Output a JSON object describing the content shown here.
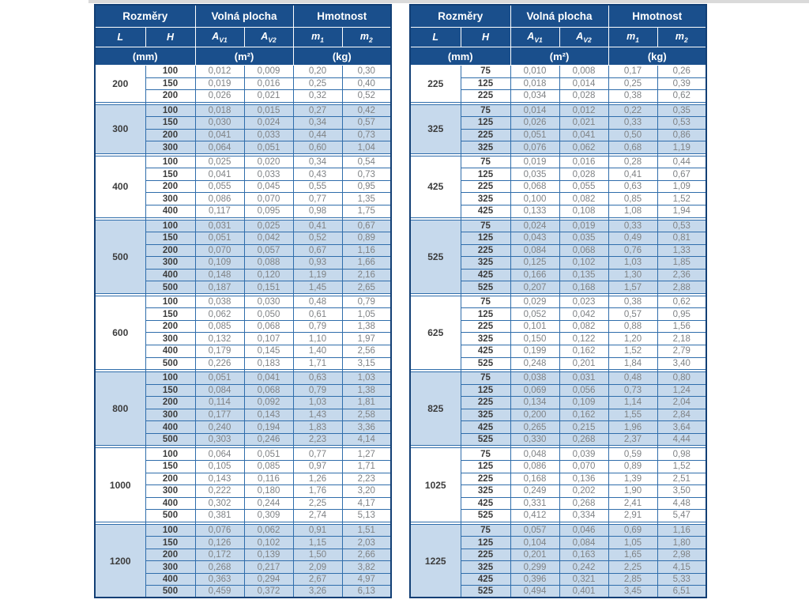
{
  "colors": {
    "header_bg": "#1a4f8c",
    "band_blue": "#c6d9ec",
    "grid_blue": "#2f6dab",
    "outer_border": "#123f75",
    "num_text": "#7f8285",
    "bold_text": "#3c3c3c"
  },
  "header": {
    "col_groups": [
      "Rozměry",
      "Volná plocha",
      "Hmotnost"
    ],
    "sub_cols": [
      {
        "base": "L",
        "sub": ""
      },
      {
        "base": "H",
        "sub": ""
      },
      {
        "base": "A",
        "sub": "V1"
      },
      {
        "base": "A",
        "sub": "V2"
      },
      {
        "base": "m",
        "sub": "1"
      },
      {
        "base": "m",
        "sub": "2"
      }
    ],
    "units": [
      "(mm)",
      "(m²)",
      "(kg)"
    ]
  },
  "tables": [
    {
      "id": "left",
      "groups": [
        {
          "L": "200",
          "shaded": false,
          "rows": [
            [
              "100",
              "0,012",
              "0,009",
              "0,20",
              "0,30"
            ],
            [
              "150",
              "0,019",
              "0,016",
              "0,25",
              "0,40"
            ],
            [
              "200",
              "0,026",
              "0,021",
              "0,32",
              "0,52"
            ]
          ]
        },
        {
          "L": "300",
          "shaded": true,
          "rows": [
            [
              "100",
              "0,018",
              "0,015",
              "0,27",
              "0,42"
            ],
            [
              "150",
              "0,030",
              "0,024",
              "0,34",
              "0,57"
            ],
            [
              "200",
              "0,041",
              "0,033",
              "0,44",
              "0,73"
            ],
            [
              "300",
              "0,064",
              "0,051",
              "0,60",
              "1,04"
            ]
          ]
        },
        {
          "L": "400",
          "shaded": false,
          "rows": [
            [
              "100",
              "0,025",
              "0,020",
              "0,34",
              "0,54"
            ],
            [
              "150",
              "0,041",
              "0,033",
              "0,43",
              "0,73"
            ],
            [
              "200",
              "0,055",
              "0,045",
              "0,55",
              "0,95"
            ],
            [
              "300",
              "0,086",
              "0,070",
              "0,77",
              "1,35"
            ],
            [
              "400",
              "0,117",
              "0,095",
              "0,98",
              "1,75"
            ]
          ]
        },
        {
          "L": "500",
          "shaded": true,
          "rows": [
            [
              "100",
              "0,031",
              "0,025",
              "0,41",
              "0,67"
            ],
            [
              "150",
              "0,051",
              "0,042",
              "0,52",
              "0,89"
            ],
            [
              "200",
              "0,070",
              "0,057",
              "0,67",
              "1,16"
            ],
            [
              "300",
              "0,109",
              "0,088",
              "0,93",
              "1,66"
            ],
            [
              "400",
              "0,148",
              "0,120",
              "1,19",
              "2,16"
            ],
            [
              "500",
              "0,187",
              "0,151",
              "1,45",
              "2,65"
            ]
          ]
        },
        {
          "L": "600",
          "shaded": false,
          "rows": [
            [
              "100",
              "0,038",
              "0,030",
              "0,48",
              "0,79"
            ],
            [
              "150",
              "0,062",
              "0,050",
              "0,61",
              "1,05"
            ],
            [
              "200",
              "0,085",
              "0,068",
              "0,79",
              "1,38"
            ],
            [
              "300",
              "0,132",
              "0,107",
              "1,10",
              "1,97"
            ],
            [
              "400",
              "0,179",
              "0,145",
              "1,40",
              "2,56"
            ],
            [
              "500",
              "0,226",
              "0,183",
              "1,71",
              "3,15"
            ]
          ]
        },
        {
          "L": "800",
          "shaded": true,
          "rows": [
            [
              "100",
              "0,051",
              "0,041",
              "0,63",
              "1,03"
            ],
            [
              "150",
              "0,084",
              "0,068",
              "0,79",
              "1,38"
            ],
            [
              "200",
              "0,114",
              "0,092",
              "1,03",
              "1,81"
            ],
            [
              "300",
              "0,177",
              "0,143",
              "1,43",
              "2,58"
            ],
            [
              "400",
              "0,240",
              "0,194",
              "1,83",
              "3,36"
            ],
            [
              "500",
              "0,303",
              "0,246",
              "2,23",
              "4,14"
            ]
          ]
        },
        {
          "L": "1000",
          "shaded": false,
          "rows": [
            [
              "100",
              "0,064",
              "0,051",
              "0,77",
              "1,27"
            ],
            [
              "150",
              "0,105",
              "0,085",
              "0,97",
              "1,71"
            ],
            [
              "200",
              "0,143",
              "0,116",
              "1,26",
              "2,23"
            ],
            [
              "300",
              "0,222",
              "0,180",
              "1,76",
              "3,20"
            ],
            [
              "400",
              "0,302",
              "0,244",
              "2,25",
              "4,17"
            ],
            [
              "500",
              "0,381",
              "0,309",
              "2,74",
              "5,13"
            ]
          ]
        },
        {
          "L": "1200",
          "shaded": true,
          "rows": [
            [
              "100",
              "0,076",
              "0,062",
              "0,91",
              "1,51"
            ],
            [
              "150",
              "0,126",
              "0,102",
              "1,15",
              "2,03"
            ],
            [
              "200",
              "0,172",
              "0,139",
              "1,50",
              "2,66"
            ],
            [
              "300",
              "0,268",
              "0,217",
              "2,09",
              "3,82"
            ],
            [
              "400",
              "0,363",
              "0,294",
              "2,67",
              "4,97"
            ],
            [
              "500",
              "0,459",
              "0,372",
              "3,26",
              "6,13"
            ]
          ]
        }
      ]
    },
    {
      "id": "right",
      "groups": [
        {
          "L": "225",
          "shaded": false,
          "rows": [
            [
              "75",
              "0,010",
              "0,008",
              "0,17",
              "0,26"
            ],
            [
              "125",
              "0,018",
              "0,014",
              "0,25",
              "0,39"
            ],
            [
              "225",
              "0,034",
              "0,028",
              "0,38",
              "0,62"
            ]
          ]
        },
        {
          "L": "325",
          "shaded": true,
          "rows": [
            [
              "75",
              "0,014",
              "0,012",
              "0,22",
              "0,35"
            ],
            [
              "125",
              "0,026",
              "0,021",
              "0,33",
              "0,53"
            ],
            [
              "225",
              "0,051",
              "0,041",
              "0,50",
              "0,86"
            ],
            [
              "325",
              "0,076",
              "0,062",
              "0,68",
              "1,19"
            ]
          ]
        },
        {
          "L": "425",
          "shaded": false,
          "rows": [
            [
              "75",
              "0,019",
              "0,016",
              "0,28",
              "0,44"
            ],
            [
              "125",
              "0,035",
              "0,028",
              "0,41",
              "0,67"
            ],
            [
              "225",
              "0,068",
              "0,055",
              "0,63",
              "1,09"
            ],
            [
              "325",
              "0,100",
              "0,082",
              "0,85",
              "1,52"
            ],
            [
              "425",
              "0,133",
              "0,108",
              "1,08",
              "1,94"
            ]
          ]
        },
        {
          "L": "525",
          "shaded": true,
          "rows": [
            [
              "75",
              "0,024",
              "0,019",
              "0,33",
              "0,53"
            ],
            [
              "125",
              "0,043",
              "0,035",
              "0,49",
              "0,81"
            ],
            [
              "225",
              "0,084",
              "0,068",
              "0,76",
              "1,33"
            ],
            [
              "325",
              "0,125",
              "0,102",
              "1,03",
              "1,85"
            ],
            [
              "425",
              "0,166",
              "0,135",
              "1,30",
              "2,36"
            ],
            [
              "525",
              "0,207",
              "0,168",
              "1,57",
              "2,88"
            ]
          ]
        },
        {
          "L": "625",
          "shaded": false,
          "rows": [
            [
              "75",
              "0,029",
              "0,023",
              "0,38",
              "0,62"
            ],
            [
              "125",
              "0,052",
              "0,042",
              "0,57",
              "0,95"
            ],
            [
              "225",
              "0,101",
              "0,082",
              "0,88",
              "1,56"
            ],
            [
              "325",
              "0,150",
              "0,122",
              "1,20",
              "2,18"
            ],
            [
              "425",
              "0,199",
              "0,162",
              "1,52",
              "2,79"
            ],
            [
              "525",
              "0,248",
              "0,201",
              "1,84",
              "3,40"
            ]
          ]
        },
        {
          "L": "825",
          "shaded": true,
          "rows": [
            [
              "75",
              "0,038",
              "0,031",
              "0,48",
              "0,80"
            ],
            [
              "125",
              "0,069",
              "0,056",
              "0,73",
              "1,24"
            ],
            [
              "225",
              "0,134",
              "0,109",
              "1,14",
              "2,04"
            ],
            [
              "325",
              "0,200",
              "0,162",
              "1,55",
              "2,84"
            ],
            [
              "425",
              "0,265",
              "0,215",
              "1,96",
              "3,64"
            ],
            [
              "525",
              "0,330",
              "0,268",
              "2,37",
              "4,44"
            ]
          ]
        },
        {
          "L": "1025",
          "shaded": false,
          "rows": [
            [
              "75",
              "0,048",
              "0,039",
              "0,59",
              "0,98"
            ],
            [
              "125",
              "0,086",
              "0,070",
              "0,89",
              "1,52"
            ],
            [
              "225",
              "0,168",
              "0,136",
              "1,39",
              "2,51"
            ],
            [
              "325",
              "0,249",
              "0,202",
              "1,90",
              "3,50"
            ],
            [
              "425",
              "0,331",
              "0,268",
              "2,41",
              "4,48"
            ],
            [
              "525",
              "0,412",
              "0,334",
              "2,91",
              "5,47"
            ]
          ]
        },
        {
          "L": "1225",
          "shaded": true,
          "rows": [
            [
              "75",
              "0,057",
              "0,046",
              "0,69",
              "1,16"
            ],
            [
              "125",
              "0,104",
              "0,084",
              "1,05",
              "1,80"
            ],
            [
              "225",
              "0,201",
              "0,163",
              "1,65",
              "2,98"
            ],
            [
              "325",
              "0,299",
              "0,242",
              "2,25",
              "4,15"
            ],
            [
              "425",
              "0,396",
              "0,321",
              "2,85",
              "5,33"
            ],
            [
              "525",
              "0,494",
              "0,401",
              "3,45",
              "6,51"
            ]
          ]
        }
      ]
    }
  ]
}
